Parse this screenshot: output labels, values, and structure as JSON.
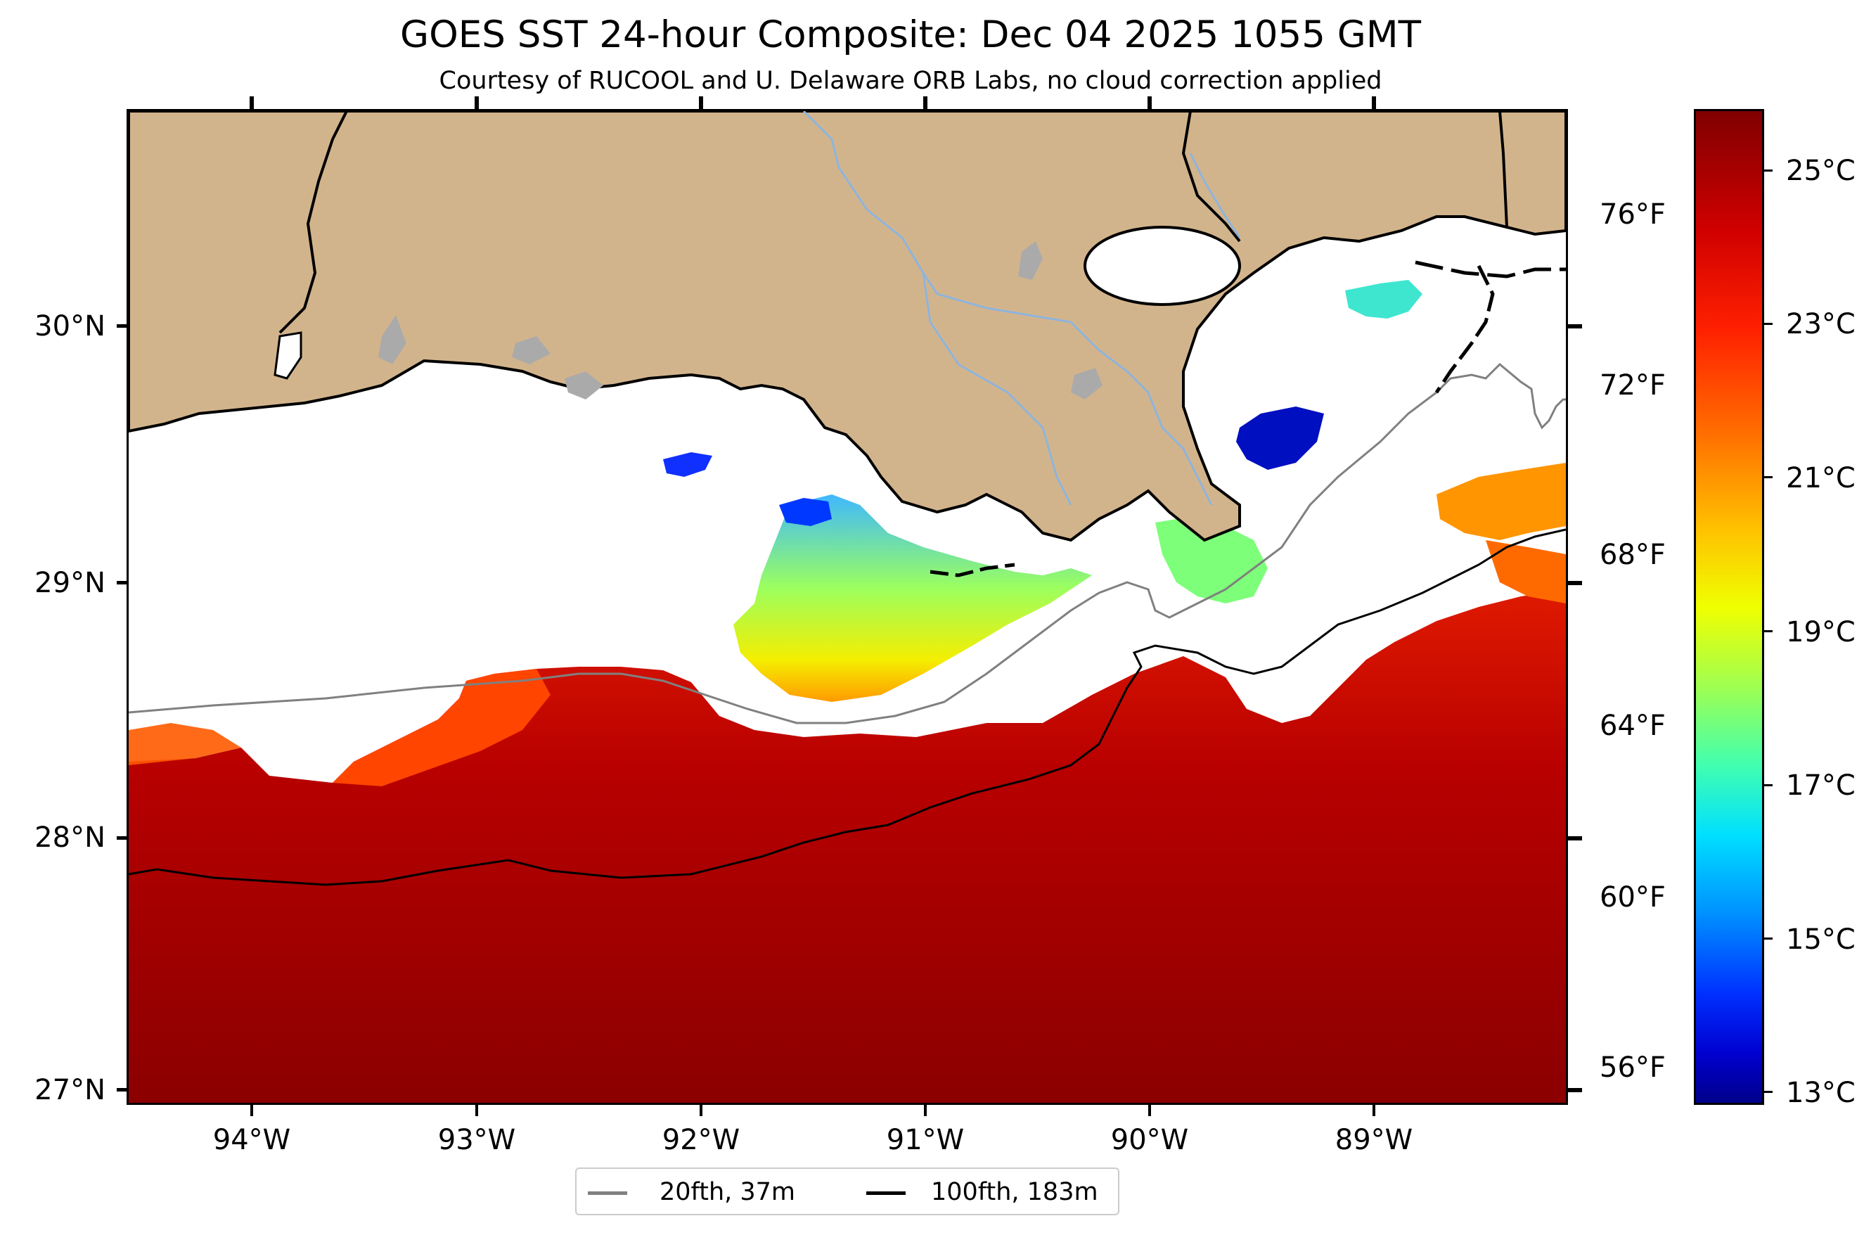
{
  "title": "GOES SST 24-hour Composite: Dec 04 2025 1055 GMT",
  "subtitle": "Courtesy of RUCOOL and U. Delaware ORB Labs, no cloud correction applied",
  "map": {
    "lat_labels": [
      "30°N",
      "29°N",
      "28°N",
      "27°N"
    ],
    "lon_labels": [
      "94°W",
      "93°W",
      "92°W",
      "91°W",
      "90°W",
      "89°W"
    ],
    "colors": {
      "land": "#d2b48c",
      "lake": "#aaaaaa",
      "river": "#8fb4dc",
      "no_data": "#ffffff",
      "warm_shelf": "#8b0000"
    }
  },
  "colorbar": {
    "fahrenheit_labels": [
      "76°F",
      "72°F",
      "68°F",
      "64°F",
      "60°F",
      "56°F"
    ],
    "celsius_labels": [
      "25°C",
      "23°C",
      "21°C",
      "19°C",
      "17°C",
      "15°C",
      "13°C"
    ],
    "range_celsius": [
      12.9,
      26.0
    ],
    "colormap": "jet"
  },
  "legend": {
    "items": [
      {
        "label": "20fth, 37m",
        "color": "#808080"
      },
      {
        "label": "100fth, 183m",
        "color": "#000000"
      }
    ]
  }
}
